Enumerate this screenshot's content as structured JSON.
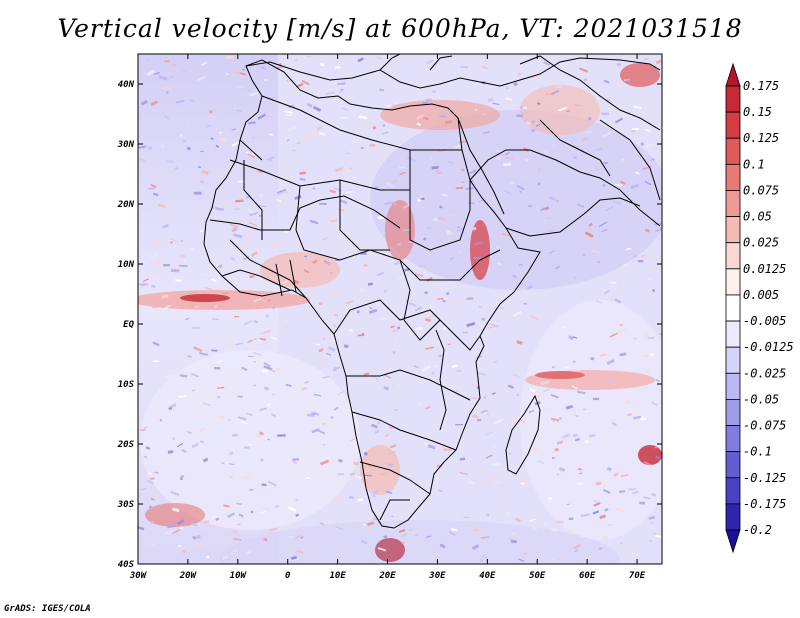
{
  "title": "Vertical velocity [m/s] at 600hPa, VT: 2021031518",
  "credit": "GrADS: IGES/COLA",
  "map": {
    "lon_range": [
      -30,
      75
    ],
    "lat_range": [
      -40,
      45
    ],
    "lat_ticks": [
      {
        "value": 40,
        "label": "40N"
      },
      {
        "value": 30,
        "label": "30N"
      },
      {
        "value": 20,
        "label": "20N"
      },
      {
        "value": 10,
        "label": "10N"
      },
      {
        "value": 0,
        "label": "EQ"
      },
      {
        "value": -10,
        "label": "10S"
      },
      {
        "value": -20,
        "label": "20S"
      },
      {
        "value": -30,
        "label": "30S"
      },
      {
        "value": -40,
        "label": "40S"
      }
    ],
    "lon_ticks": [
      {
        "value": -30,
        "label": "30W"
      },
      {
        "value": -20,
        "label": "20W"
      },
      {
        "value": -10,
        "label": "10W"
      },
      {
        "value": 0,
        "label": "0"
      },
      {
        "value": 10,
        "label": "10E"
      },
      {
        "value": 20,
        "label": "20E"
      },
      {
        "value": 30,
        "label": "30E"
      },
      {
        "value": 40,
        "label": "40E"
      },
      {
        "value": 50,
        "label": "50E"
      },
      {
        "value": 60,
        "label": "60E"
      },
      {
        "value": 70,
        "label": "70E"
      }
    ]
  },
  "colorbar": {
    "levels": [
      "0.175",
      "0.15",
      "0.125",
      "0.1",
      "0.075",
      "0.05",
      "0.025",
      "0.0125",
      "0.005",
      "-0.005",
      "-0.0125",
      "-0.025",
      "-0.05",
      "-0.075",
      "-0.1",
      "-0.125",
      "-0.175",
      "-0.2"
    ],
    "colors": [
      "#b2182b",
      "#c62a36",
      "#d73c44",
      "#e05a5a",
      "#e87a77",
      "#ef9a94",
      "#f5bab3",
      "#f9d7d2",
      "#fdf0ee",
      "#ffffff",
      "#eceaff",
      "#d6d3fb",
      "#bdb8f4",
      "#a09aea",
      "#837cdf",
      "#645dd2",
      "#4a42c3",
      "#2f25ad",
      "#1c0f99"
    ]
  }
}
